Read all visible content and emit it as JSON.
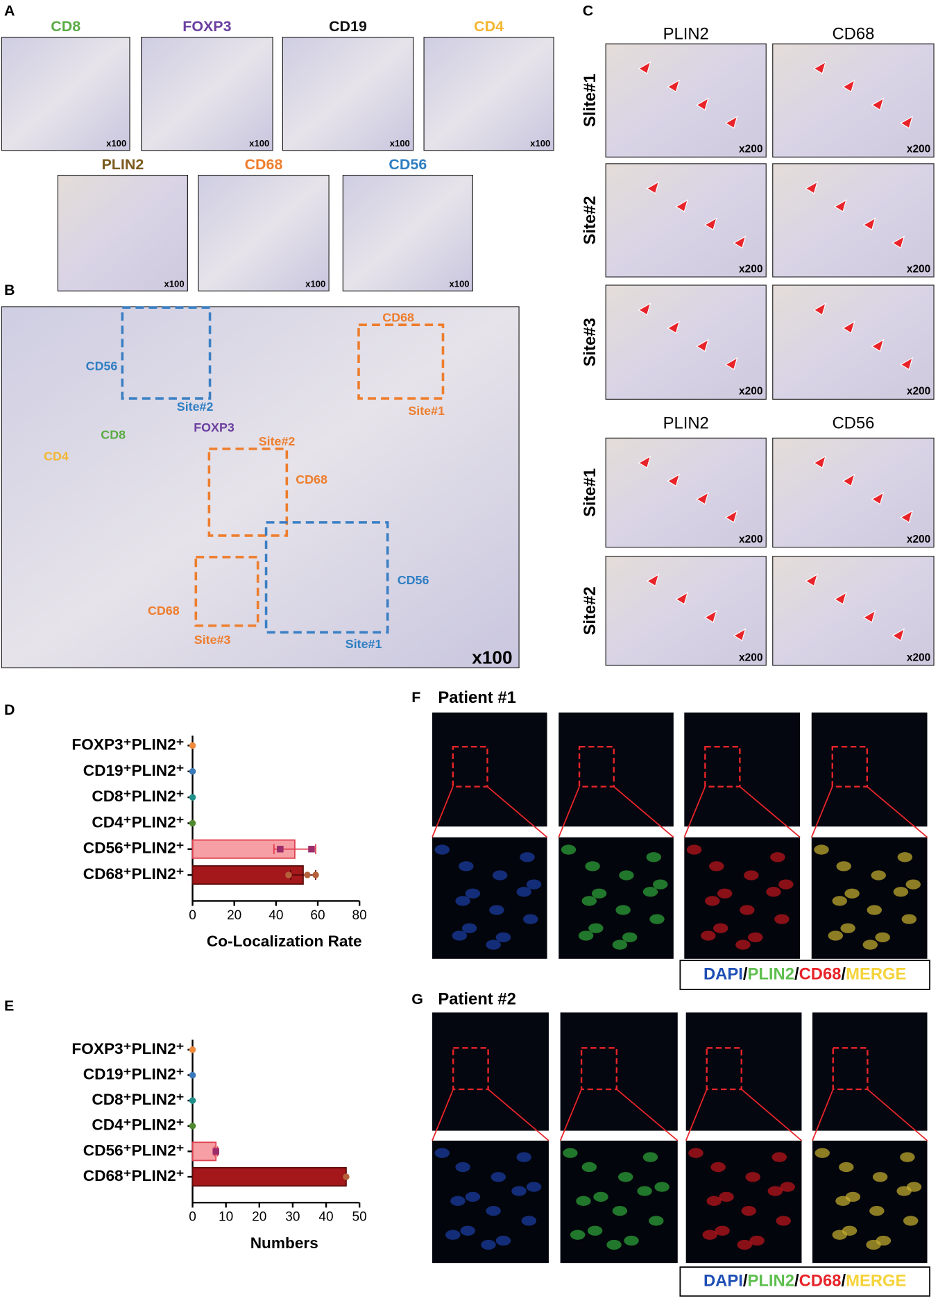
{
  "panel_a": {
    "label": "A",
    "magnification": "x100",
    "stains": [
      {
        "name": "CD8",
        "color": "#5aab45"
      },
      {
        "name": "FOXP3",
        "color": "#6b3fa0"
      },
      {
        "name": "CD19",
        "color": "#111111"
      },
      {
        "name": "CD4",
        "color": "#f2b630"
      },
      {
        "name": "PLIN2",
        "color": "#7b5b1e"
      },
      {
        "name": "CD68",
        "color": "#ee7d2c"
      },
      {
        "name": "CD56",
        "color": "#2e7ec2"
      }
    ]
  },
  "panel_b": {
    "label": "B",
    "magnification": "x100",
    "annotations": [
      {
        "text": "CD68",
        "color": "#ee7d2c"
      },
      {
        "text": "CD56",
        "color": "#2e7ec2"
      },
      {
        "text": "Site#2",
        "color": "#2e7ec2"
      },
      {
        "text": "Site#1",
        "color": "#ee7d2c"
      },
      {
        "text": "CD8",
        "color": "#5aab45"
      },
      {
        "text": "FOXP3",
        "color": "#6b3fa0"
      },
      {
        "text": "Site#2",
        "color": "#ee7d2c"
      },
      {
        "text": "CD4",
        "color": "#f2b630"
      },
      {
        "text": "CD68",
        "color": "#ee7d2c"
      },
      {
        "text": "CD56",
        "color": "#2e7ec2"
      },
      {
        "text": "CD68",
        "color": "#ee7d2c"
      },
      {
        "text": "Site#3",
        "color": "#ee7d2c"
      },
      {
        "text": "Site#1",
        "color": "#2e7ec2"
      }
    ]
  },
  "panel_c": {
    "label": "C",
    "magnification": "x200",
    "top": {
      "columns": [
        "PLIN2",
        "CD68"
      ],
      "rows": [
        "Slite#1",
        "Site#2",
        "Site#3"
      ]
    },
    "bottom": {
      "columns": [
        "PLIN2",
        "CD56"
      ],
      "rows": [
        "Site#1",
        "Site#2"
      ]
    }
  },
  "chart_data": [
    {
      "type": "bar",
      "orientation": "horizontal",
      "panel": "D",
      "xlabel": "Co-Localization Rate",
      "categories": [
        "FOXP3⁺PLIN2⁺",
        "CD19⁺PLIN2⁺",
        "CD8⁺PLIN2⁺",
        "CD4⁺PLIN2⁺",
        "CD56⁺PLIN2⁺",
        "CD68⁺PLIN2⁺"
      ],
      "values": [
        0,
        0,
        0,
        0,
        49,
        53
      ],
      "errors": [
        0,
        0,
        0,
        0,
        10,
        6
      ],
      "points": [
        [
          0
        ],
        [
          0
        ],
        [
          0
        ],
        [
          0
        ],
        [
          42,
          57
        ],
        [
          46,
          55,
          59
        ]
      ],
      "bar_colors": [
        "#f08a3c",
        "#3a78b8",
        "#1f8f8a",
        "#4f8a30",
        "#f37f86",
        "#a4171a"
      ],
      "point_colors": [
        "#f08a3c",
        "#3a78b8",
        "#1f8f8a",
        "#4f8a30",
        "#9c2d6b",
        "#b5603a"
      ],
      "xlim": [
        0,
        80
      ],
      "xticks": [
        0,
        20,
        40,
        60,
        80
      ]
    },
    {
      "type": "bar",
      "orientation": "horizontal",
      "panel": "E",
      "xlabel": "Numbers",
      "categories": [
        "FOXP3⁺PLIN2⁺",
        "CD19⁺PLIN2⁺",
        "CD8⁺PLIN2⁺",
        "CD4⁺PLIN2⁺",
        "CD56⁺PLIN2⁺",
        "CD68⁺PLIN2⁺"
      ],
      "values": [
        0,
        0,
        0,
        0,
        7,
        46
      ],
      "errors": [
        0,
        0,
        0,
        0,
        0.5,
        0
      ],
      "points": [
        [
          0
        ],
        [
          0
        ],
        [
          0
        ],
        [
          0
        ],
        [
          7
        ],
        [
          46
        ]
      ],
      "bar_colors": [
        "#f08a3c",
        "#3a78b8",
        "#1f8f8a",
        "#4f8a30",
        "#f37f86",
        "#a4171a"
      ],
      "point_colors": [
        "#f08a3c",
        "#3a78b8",
        "#1f8f8a",
        "#4f8a30",
        "#9c2d6b",
        "#b5603a"
      ],
      "xlim": [
        0,
        50
      ],
      "xticks": [
        0,
        10,
        20,
        30,
        40,
        50
      ]
    }
  ],
  "panel_f": {
    "label": "F",
    "title": "Patient #1"
  },
  "panel_g": {
    "label": "G",
    "title": "Patient #2"
  },
  "legend": {
    "separator": "/",
    "items": [
      {
        "name": "DAPI",
        "color": "#1f4fb5"
      },
      {
        "name": "PLIN2",
        "color": "#5fbf4f"
      },
      {
        "name": "CD68",
        "color": "#e8242a"
      },
      {
        "name": "MERGE",
        "color": "#f5d33a"
      }
    ]
  }
}
